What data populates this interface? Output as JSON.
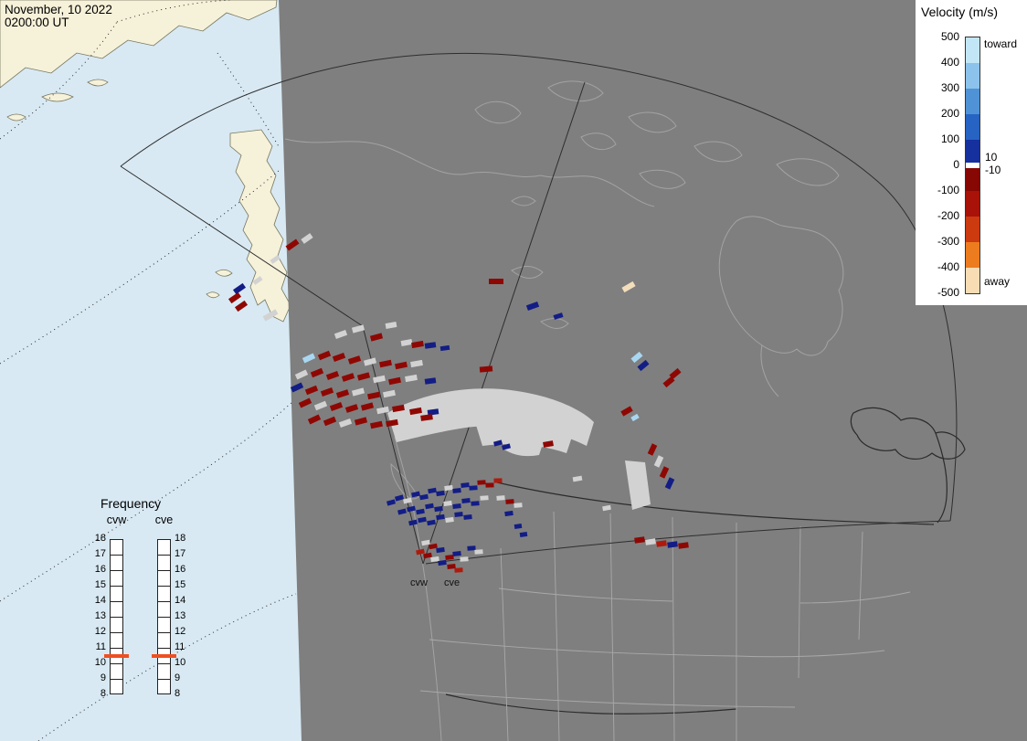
{
  "header": {
    "date_line": "November, 10 2022",
    "time_line": "0200:00 UT"
  },
  "velocity_legend": {
    "title": "Velocity (m/s)",
    "toward_label": "toward",
    "away_label": "away",
    "upper_threshold_label": "10",
    "lower_threshold_label": "-10",
    "tick_labels": [
      "500",
      "400",
      "300",
      "200",
      "100",
      "0",
      "-100",
      "-200",
      "-300",
      "-400",
      "-500"
    ],
    "segments": [
      {
        "from": 500,
        "to": 400,
        "color": "#c3e6f6"
      },
      {
        "from": 400,
        "to": 300,
        "color": "#8cc3ec"
      },
      {
        "from": 300,
        "to": 200,
        "color": "#4f93d6"
      },
      {
        "from": 200,
        "to": 100,
        "color": "#2763c2"
      },
      {
        "from": 100,
        "to": 10,
        "color": "#16309e"
      },
      {
        "from": 10,
        "to": -10,
        "color": "#ffffff"
      },
      {
        "from": -10,
        "to": -100,
        "color": "#860703"
      },
      {
        "from": -100,
        "to": -200,
        "color": "#a81208"
      },
      {
        "from": -200,
        "to": -300,
        "color": "#cc3a10"
      },
      {
        "from": -300,
        "to": -400,
        "color": "#ec7c1e"
      },
      {
        "from": -400,
        "to": -500,
        "color": "#f8dcb4"
      }
    ]
  },
  "frequency_legend": {
    "title": "Frequency",
    "columns": [
      {
        "label": "cvw"
      },
      {
        "label": "cve"
      }
    ],
    "tick_values": [
      18,
      17,
      16,
      15,
      14,
      13,
      12,
      11,
      10,
      9,
      8
    ],
    "marker_value": 10.5,
    "marker_color": "#f04f22"
  },
  "map": {
    "radar_labels": {
      "cvw": "cvw",
      "cve": "cve"
    },
    "colors": {
      "ocean": "#d8e9f3",
      "land": "#f6f1d9",
      "night": "#7f7f7f",
      "coast_night": "#a3a3a3",
      "ground_scatter": "#d2d2d2"
    }
  },
  "chart_data": {
    "type": "map_velocity_scatter",
    "velocity_units": "m/s",
    "colorbar_range": [
      -500,
      500
    ],
    "palette": {
      "dr": "#8f0703",
      "r": "#b01a0c",
      "gy": "#d2d2d2",
      "nb": "#131d86",
      "lb": "#a9d7f2",
      "cr": "#f3debc"
    },
    "cells": [
      [
        320,
        268,
        -35,
        "dr",
        14,
        6
      ],
      [
        336,
        261,
        -35,
        "gy",
        12,
        6
      ],
      [
        301,
        284,
        -35,
        "gy",
        10,
        5
      ],
      [
        282,
        307,
        -35,
        "gy",
        10,
        5
      ],
      [
        262,
        316,
        -35,
        "nb",
        13,
        6
      ],
      [
        257,
        326,
        -35,
        "dr",
        13,
        6
      ],
      [
        264,
        335,
        -35,
        "dr",
        13,
        6
      ],
      [
        296,
        345,
        -30,
        "gy",
        16,
        6
      ],
      [
        392,
        360,
        -15,
        "gy",
        13,
        6
      ],
      [
        373,
        366,
        -20,
        "gy",
        13,
        6
      ],
      [
        428,
        356,
        -10,
        "gy",
        12,
        6
      ],
      [
        412,
        369,
        -15,
        "dr",
        13,
        6
      ],
      [
        445,
        375,
        -10,
        "gy",
        12,
        6
      ],
      [
        457,
        377,
        -10,
        "dr",
        13,
        6
      ],
      [
        471,
        378,
        -8,
        "nb",
        12,
        6
      ],
      [
        487,
        381,
        -8,
        "nb",
        10,
        5
      ],
      [
        338,
        392,
        -25,
        "lb",
        13,
        6
      ],
      [
        355,
        389,
        -22,
        "dr",
        13,
        6
      ],
      [
        371,
        391,
        -20,
        "dr",
        13,
        6
      ],
      [
        388,
        394,
        -18,
        "dr",
        13,
        6
      ],
      [
        405,
        396,
        -15,
        "gy",
        13,
        6
      ],
      [
        422,
        398,
        -12,
        "dr",
        13,
        6
      ],
      [
        439,
        400,
        -12,
        "dr",
        13,
        6
      ],
      [
        456,
        398,
        -10,
        "gy",
        13,
        6
      ],
      [
        532,
        404,
        -5,
        "dr",
        14,
        6
      ],
      [
        330,
        410,
        -25,
        "gy",
        13,
        6
      ],
      [
        347,
        408,
        -22,
        "dr",
        13,
        6
      ],
      [
        364,
        411,
        -20,
        "dr",
        13,
        6
      ],
      [
        381,
        413,
        -18,
        "dr",
        13,
        6
      ],
      [
        398,
        412,
        -15,
        "dr",
        13,
        6
      ],
      [
        415,
        415,
        -12,
        "gy",
        13,
        6
      ],
      [
        432,
        417,
        -12,
        "dr",
        13,
        6
      ],
      [
        450,
        414,
        -10,
        "gy",
        13,
        6
      ],
      [
        471,
        417,
        -8,
        "nb",
        12,
        6
      ],
      [
        325,
        424,
        -25,
        "nb",
        13,
        6
      ],
      [
        341,
        427,
        -22,
        "dr",
        13,
        6
      ],
      [
        358,
        429,
        -20,
        "dr",
        13,
        6
      ],
      [
        375,
        431,
        -18,
        "dr",
        13,
        6
      ],
      [
        392,
        429,
        -15,
        "gy",
        13,
        6
      ],
      [
        409,
        433,
        -12,
        "dr",
        13,
        6
      ],
      [
        426,
        431,
        -12,
        "gy",
        13,
        6
      ],
      [
        334,
        441,
        -25,
        "dr",
        13,
        6
      ],
      [
        351,
        444,
        -22,
        "gy",
        13,
        6
      ],
      [
        368,
        445,
        -20,
        "dr",
        13,
        6
      ],
      [
        385,
        447,
        -18,
        "dr",
        13,
        6
      ],
      [
        402,
        445,
        -15,
        "dr",
        13,
        6
      ],
      [
        419,
        449,
        -12,
        "gy",
        13,
        6
      ],
      [
        436,
        447,
        -10,
        "dr",
        13,
        6
      ],
      [
        455,
        450,
        -10,
        "dr",
        13,
        6
      ],
      [
        474,
        451,
        -8,
        "nb",
        12,
        6
      ],
      [
        344,
        459,
        -25,
        "dr",
        13,
        6
      ],
      [
        361,
        461,
        -22,
        "dr",
        13,
        6
      ],
      [
        378,
        463,
        -20,
        "gy",
        13,
        6
      ],
      [
        395,
        461,
        -15,
        "dr",
        13,
        6
      ],
      [
        412,
        465,
        -12,
        "dr",
        13,
        6
      ],
      [
        429,
        463,
        -10,
        "dr",
        13,
        6
      ],
      [
        467,
        457,
        -8,
        "dr",
        13,
        6
      ],
      [
        543,
        308,
        0,
        "dr",
        16,
        6
      ],
      [
        583,
        335,
        -20,
        "nb",
        13,
        6
      ],
      [
        611,
        346,
        -18,
        "nb",
        10,
        5
      ],
      [
        688,
        314,
        -30,
        "cr",
        14,
        6
      ],
      [
        697,
        391,
        -40,
        "lb",
        12,
        6
      ],
      [
        704,
        400,
        -40,
        "nb",
        12,
        6
      ],
      [
        739,
        409,
        -40,
        "dr",
        12,
        6
      ],
      [
        732,
        418,
        -40,
        "dr",
        12,
        6
      ],
      [
        686,
        450,
        -30,
        "dr",
        12,
        6
      ],
      [
        695,
        457,
        -30,
        "lb",
        8,
        5
      ],
      [
        714,
        492,
        -65,
        "dr",
        12,
        6
      ],
      [
        721,
        505,
        -65,
        "gy",
        12,
        6
      ],
      [
        727,
        517,
        -65,
        "dr",
        12,
        6
      ],
      [
        733,
        529,
        -65,
        "nb",
        12,
        6
      ],
      [
        700,
        591,
        -8,
        "dr",
        11,
        6
      ],
      [
        712,
        593,
        -8,
        "gy",
        11,
        6
      ],
      [
        724,
        595,
        -8,
        "r",
        11,
        6
      ],
      [
        736,
        596,
        -8,
        "nb",
        11,
        6
      ],
      [
        748,
        597,
        -8,
        "dr",
        11,
        6
      ],
      [
        600,
        486,
        -10,
        "dr",
        11,
        6
      ],
      [
        545,
        485,
        -15,
        "nb",
        9,
        5
      ],
      [
        554,
        489,
        -15,
        "nb",
        9,
        5
      ],
      [
        632,
        524,
        -10,
        "gy",
        10,
        5
      ],
      [
        664,
        556,
        -10,
        "gy",
        9,
        5
      ],
      [
        428,
        550,
        -15,
        "nb",
        9,
        5
      ],
      [
        437,
        545,
        -15,
        "nb",
        9,
        5
      ],
      [
        446,
        548,
        -12,
        "gy",
        9,
        5
      ],
      [
        455,
        541,
        -12,
        "nb",
        9,
        5
      ],
      [
        464,
        544,
        -10,
        "nb",
        9,
        5
      ],
      [
        473,
        537,
        -10,
        "nb",
        9,
        5
      ],
      [
        482,
        540,
        -8,
        "nb",
        9,
        5
      ],
      [
        491,
        534,
        -8,
        "gy",
        9,
        5
      ],
      [
        500,
        537,
        -6,
        "nb",
        9,
        5
      ],
      [
        509,
        531,
        -6,
        "nb",
        9,
        5
      ],
      [
        518,
        534,
        -4,
        "nb",
        9,
        5
      ],
      [
        527,
        528,
        -4,
        "dr",
        9,
        5
      ],
      [
        536,
        531,
        -2,
        "dr",
        9,
        5
      ],
      [
        545,
        526,
        -2,
        "r",
        9,
        5
      ],
      [
        440,
        560,
        -14,
        "nb",
        9,
        5
      ],
      [
        450,
        557,
        -12,
        "nb",
        9,
        5
      ],
      [
        460,
        560,
        -10,
        "nb",
        9,
        5
      ],
      [
        470,
        554,
        -10,
        "nb",
        9,
        5
      ],
      [
        480,
        557,
        -8,
        "nb",
        9,
        5
      ],
      [
        490,
        551,
        -8,
        "gy",
        9,
        5
      ],
      [
        500,
        554,
        -6,
        "nb",
        9,
        5
      ],
      [
        510,
        548,
        -6,
        "nb",
        9,
        5
      ],
      [
        520,
        551,
        -4,
        "nb",
        9,
        5
      ],
      [
        530,
        545,
        -4,
        "gy",
        9,
        5
      ],
      [
        452,
        572,
        -12,
        "nb",
        9,
        5
      ],
      [
        462,
        569,
        -10,
        "nb",
        9,
        5
      ],
      [
        472,
        572,
        -10,
        "nb",
        9,
        5
      ],
      [
        482,
        566,
        -8,
        "nb",
        9,
        5
      ],
      [
        492,
        569,
        -8,
        "gy",
        9,
        5
      ],
      [
        502,
        563,
        -6,
        "nb",
        9,
        5
      ],
      [
        512,
        566,
        -6,
        "nb",
        9,
        5
      ],
      [
        548,
        545,
        -5,
        "gy",
        9,
        5
      ],
      [
        558,
        549,
        -5,
        "dr",
        9,
        5
      ],
      [
        567,
        553,
        -5,
        "gy",
        9,
        5
      ],
      [
        557,
        562,
        -8,
        "nb",
        9,
        5
      ],
      [
        567,
        576,
        -8,
        "nb",
        8,
        5
      ],
      [
        573,
        585,
        -8,
        "nb",
        8,
        5
      ],
      [
        466,
        594,
        -10,
        "gy",
        9,
        5
      ],
      [
        474,
        598,
        -10,
        "dr",
        9,
        5
      ],
      [
        482,
        602,
        -8,
        "nb",
        9,
        5
      ],
      [
        460,
        604,
        -12,
        "r",
        9,
        5
      ],
      [
        468,
        608,
        -10,
        "dr",
        9,
        5
      ],
      [
        476,
        612,
        -8,
        "gy",
        9,
        5
      ],
      [
        484,
        616,
        -8,
        "nb",
        9,
        5
      ],
      [
        492,
        610,
        -6,
        "dr",
        9,
        5
      ],
      [
        500,
        606,
        -6,
        "nb",
        9,
        5
      ],
      [
        508,
        612,
        -4,
        "gy",
        9,
        5
      ],
      [
        494,
        620,
        -6,
        "dr",
        9,
        5
      ],
      [
        502,
        624,
        -4,
        "r",
        9,
        5
      ],
      [
        516,
        600,
        -4,
        "nb",
        9,
        5
      ],
      [
        524,
        604,
        -4,
        "gy",
        9,
        5
      ]
    ]
  }
}
